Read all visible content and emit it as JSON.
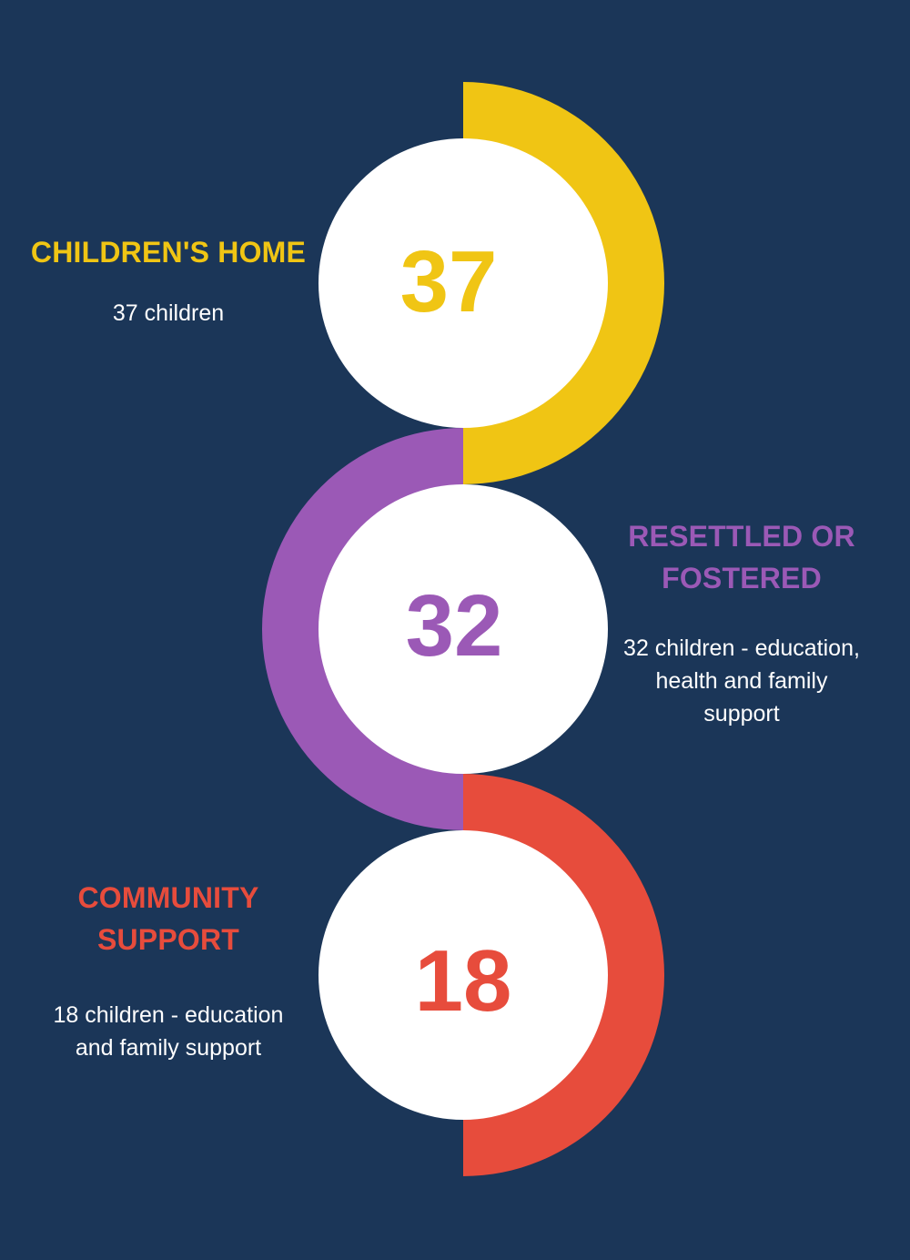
{
  "colors": {
    "background": "#1b3658",
    "yellow": "#f0c514",
    "purple": "#9b59b6",
    "red": "#e74c3c",
    "white": "#ffffff"
  },
  "items": [
    {
      "number": "37",
      "title": "CHILDREN'S HOME",
      "description": "37 children",
      "color": "#f0c514"
    },
    {
      "number": "32",
      "title": "RESETTLED OR FOSTERED",
      "description": "32 children - education, health and family support",
      "color": "#9b59b6"
    },
    {
      "number": "18",
      "title": "COMMUNITY SUPPORT",
      "description": "18 children - education and family support",
      "color": "#e74c3c"
    }
  ]
}
